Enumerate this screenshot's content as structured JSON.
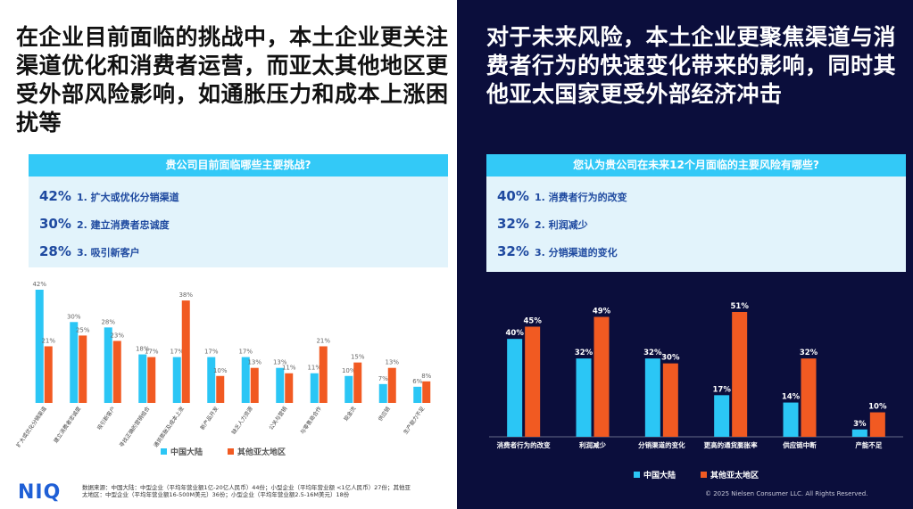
{
  "chart_data": [
    {
      "type": "bar",
      "headline": "在企业目前面临的挑战中，本土企业更关注渠道优化和消费者运营，而亚太其他地区更受外部风险影响，如通胀压力和成本上涨困扰等",
      "title": "贵公司目前面临哪些主要挑战?",
      "highlights": [
        {
          "value": 42,
          "value_label": "42%",
          "text": "1. 扩大或优化分销渠道"
        },
        {
          "value": 30,
          "value_label": "30%",
          "text": "2. 建立消费者忠诚度"
        },
        {
          "value": 28,
          "value_label": "28%",
          "text": "3. 吸引新客户"
        }
      ],
      "categories": [
        "扩大或优化分销渠道",
        "建立消费者忠诚度",
        "吸引新客户",
        "寻找正确的营销组合",
        "通货膨胀及成本上涨",
        "新产品开发",
        "缺乏人力资源",
        "公关与营销",
        "与零售商合作",
        "现金流",
        "供应链",
        "生产能力不足"
      ],
      "series": [
        {
          "name": "中国大陆",
          "color": "#2bc6f5",
          "values": [
            42,
            30,
            28,
            18,
            17,
            17,
            17,
            13,
            11,
            10,
            7,
            6
          ],
          "value_labels": [
            "42%",
            "30%",
            "28%",
            "18%",
            "17%",
            "17%",
            "17%",
            "13%",
            "11%",
            "10%",
            "7%",
            "6%"
          ]
        },
        {
          "name": "其他亚太地区",
          "color": "#f15a22",
          "values": [
            21,
            25,
            23,
            17,
            38,
            10,
            13,
            11,
            21,
            15,
            13,
            8
          ],
          "value_labels": [
            "21%",
            "25%",
            "23%",
            "17%",
            "38%",
            "10%",
            "13%",
            "11%",
            "21%",
            "15%",
            "13%",
            "8%"
          ]
        }
      ]
    },
    {
      "type": "bar",
      "headline": "对于未来风险，本土企业更聚焦渠道与消费者行为的快速变化带来的影响，同时其他亚太国家更受外部经济冲击",
      "title": "您认为贵公司在未来12个月面临的主要风险有哪些?",
      "highlights": [
        {
          "value": 40,
          "value_label": "40%",
          "text": "1. 消费者行为的改变"
        },
        {
          "value": 32,
          "value_label": "32%",
          "text": "2. 利润减少"
        },
        {
          "value": 32,
          "value_label": "32%",
          "text": "3. 分销渠道的变化"
        }
      ],
      "categories": [
        "消费者行为的改变",
        "利润减少",
        "分销渠道的变化",
        "更高的通货膨胀率",
        "供应链中断",
        "产能不足"
      ],
      "series": [
        {
          "name": "中国大陆",
          "color": "#2bc6f5",
          "values": [
            40,
            32,
            32,
            17,
            14,
            3
          ],
          "value_labels": [
            "40%",
            "32%",
            "32%",
            "17%",
            "14%",
            "3%"
          ]
        },
        {
          "name": "其他亚太地区",
          "color": "#f15a22",
          "values": [
            45,
            49,
            30,
            51,
            32,
            10
          ],
          "value_labels": [
            "45%",
            "49%",
            "30%",
            "51%",
            "32%",
            "10%"
          ]
        }
      ]
    }
  ],
  "footer": {
    "logo": "NIQ",
    "source": "数据来源：中国大陆：中型企业（平均年营业额1亿-20亿人民币）44份；小型企业（平均年营业额 <1亿人民币）27份；其他亚太地区：中型企业（平均年营业额16-500M美元）36份；小型企业（平均年营业额2.5-16M美元）18份",
    "copyright": "© 2025 Nielsen Consumer LLC. All Rights Reserved."
  }
}
